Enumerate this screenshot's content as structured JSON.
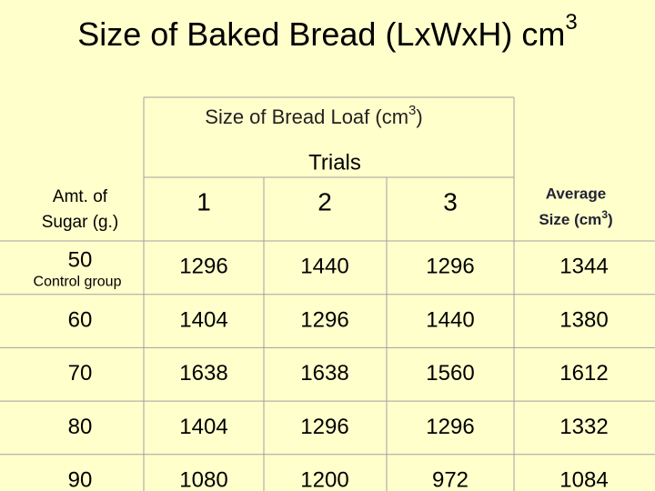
{
  "title": {
    "text": "Size of Baked Bread (LxWxH) cm",
    "superscript": "3"
  },
  "table": {
    "caption": {
      "text": "Size of Bread Loaf (cm",
      "superscript": "3",
      "suffix": ")"
    },
    "group_header": "Trials",
    "row_header": [
      "Amt. of",
      "Sugar (g.)"
    ],
    "columns": [
      "1",
      "2",
      "3"
    ],
    "average_header": {
      "line1": "Average",
      "text": "Size (cm",
      "superscript": "3",
      "suffix": ")"
    },
    "rows": [
      {
        "sugar": 50,
        "note": "Control group",
        "values": [
          1296,
          1440,
          1296,
          1344
        ]
      },
      {
        "sugar": 60,
        "values": [
          1404,
          1296,
          1440,
          1380
        ]
      },
      {
        "sugar": 70,
        "values": [
          1638,
          1638,
          1560,
          1612
        ]
      },
      {
        "sugar": 80,
        "values": [
          1404,
          1296,
          1296,
          1332
        ]
      },
      {
        "sugar": 90,
        "values": [
          1080,
          1200,
          972,
          1084
        ]
      }
    ]
  }
}
